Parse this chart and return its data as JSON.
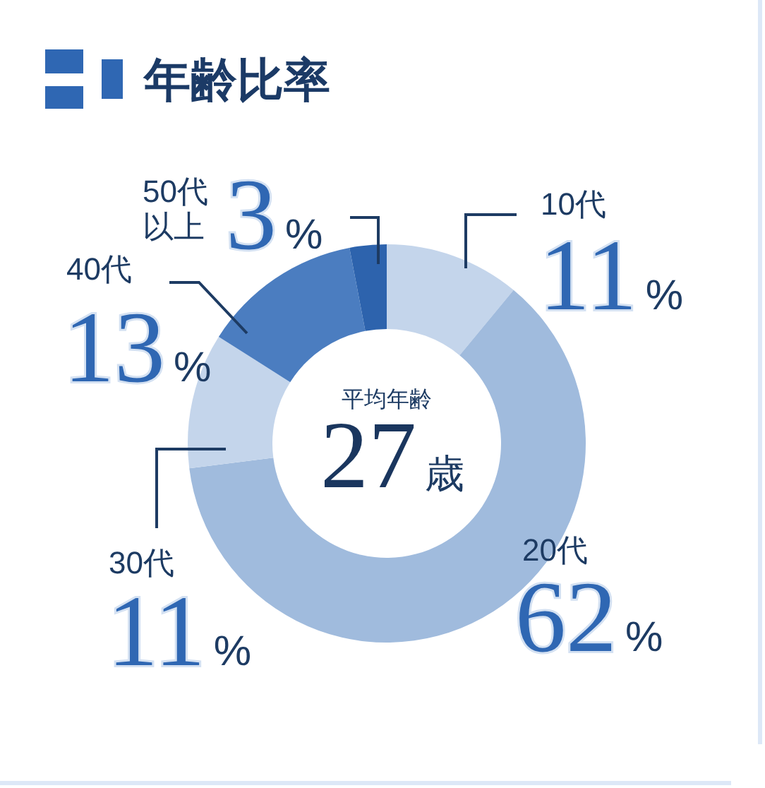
{
  "chart_data": {
    "type": "donut",
    "title": "年齢比率",
    "categories": [
      "10代",
      "20代",
      "30代",
      "40代",
      "50代以上"
    ],
    "values": [
      11,
      62,
      11,
      13,
      3
    ],
    "colors": [
      "#c4d5eb",
      "#a0bbdd",
      "#c4d5eb",
      "#4b7dc0",
      "#2d63ad"
    ],
    "value_labels": [
      "11%",
      "62%",
      "11%",
      "13%",
      "3%"
    ],
    "annotations": [
      "平均年齢",
      "27歳"
    ]
  }
}
